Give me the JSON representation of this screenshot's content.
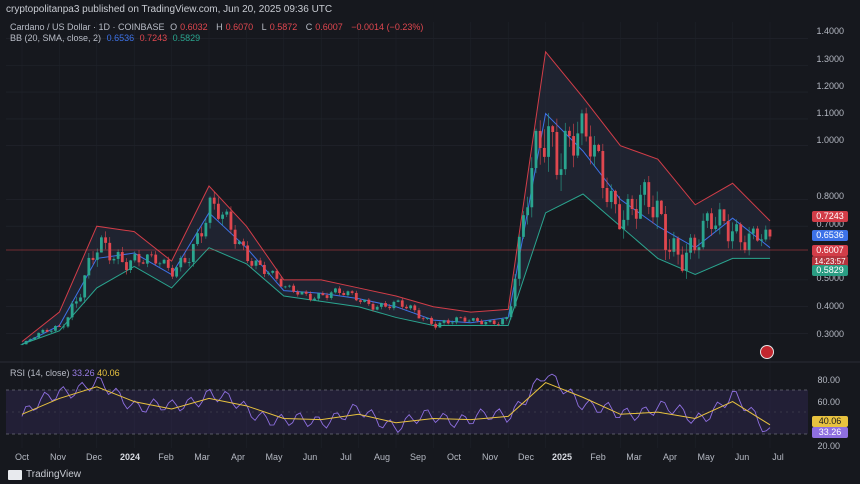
{
  "header": {
    "publisher_line": "cryptopolitanpa3 published on TradingView.com, Jun 20, 2025 09:36 UTC"
  },
  "legend": {
    "symbol": "Cardano / US Dollar · 1D · COINBASE",
    "open_label": "O",
    "open": "0.6032",
    "high_label": "H",
    "high": "0.6070",
    "low_label": "L",
    "low": "0.5872",
    "close_label": "C",
    "close": "0.6007",
    "change": "−0.0014 (−0.23%)",
    "bb_label": "BB (20, SMA, close, 2)",
    "bb_basis": "0.6536",
    "bb_upper": "0.7243",
    "bb_lower": "0.5829"
  },
  "rsi_legend": {
    "label": "RSI (14, close)",
    "rsi": "33.26",
    "rsi_ma": "40.06"
  },
  "price_axis": {
    "ticks": [
      "1.4000",
      "1.3000",
      "1.2000",
      "1.1000",
      "1.0000",
      "0.8000",
      "0.7000",
      "0.5000",
      "0.4000",
      "0.3000"
    ]
  },
  "rsi_axis": {
    "ticks": [
      "80.00",
      "60.00",
      "20.00"
    ]
  },
  "tags": {
    "bb_upper": "0.7243",
    "bb_basis": "0.6536",
    "price": "0.6007",
    "countdown": "14:23:57",
    "bb_lower": "0.5829",
    "rsi_ma": "40.06",
    "rsi": "33.26"
  },
  "time_axis": {
    "labels": [
      "Oct",
      "Nov",
      "Dec",
      "2024",
      "Feb",
      "Mar",
      "Apr",
      "May",
      "Jun",
      "Jul",
      "Aug",
      "Sep",
      "Oct",
      "Nov",
      "Dec",
      "2025",
      "Feb",
      "Mar",
      "Apr",
      "May",
      "Jun",
      "Jul"
    ],
    "bold": [
      "2024",
      "2025"
    ]
  },
  "footer": {
    "brand": "TradingView"
  },
  "colors": {
    "candle_up": "#2aa58f",
    "candle_down": "#e0474f",
    "bb_upper": "#d23d48",
    "bb_basis": "#3d72e8",
    "bb_lower": "#2aa58f",
    "rsi": "#8e6fe0",
    "rsi_ma": "#e8c23f"
  },
  "chart_data": {
    "type": "line",
    "title": "Cardano / US Dollar · 1D · COINBASE",
    "xlabel": "",
    "ylabel": "",
    "ylim": [
      0.22,
      1.45
    ],
    "x": [
      "Oct",
      "Nov",
      "Dec",
      "2024",
      "Feb",
      "Mar",
      "Apr",
      "May",
      "Jun",
      "Jul",
      "Aug",
      "Sep",
      "Oct",
      "Nov",
      "Dec",
      "2025",
      "Feb",
      "Mar",
      "Apr",
      "May",
      "Jun"
    ],
    "series": [
      {
        "name": "",
        "values": [
          0.26,
          0.33,
          0.58,
          0.6,
          0.52,
          0.75,
          0.62,
          0.46,
          0.45,
          0.43,
          0.4,
          0.35,
          0.34,
          0.36,
          1.12,
          0.98,
          0.8,
          0.7,
          0.62,
          0.73,
          0.62
        ]
      },
      {
        "name": "",
        "values": [
          0.27,
          0.38,
          0.7,
          0.68,
          0.57,
          0.85,
          0.7,
          0.5,
          0.5,
          0.47,
          0.44,
          0.4,
          0.38,
          0.39,
          1.35,
          1.18,
          1.0,
          0.95,
          0.78,
          0.86,
          0.72
        ]
      },
      {
        "name": "",
        "values": [
          0.26,
          0.31,
          0.47,
          0.55,
          0.47,
          0.62,
          0.56,
          0.44,
          0.42,
          0.4,
          0.36,
          0.33,
          0.33,
          0.33,
          0.75,
          0.82,
          0.7,
          0.58,
          0.52,
          0.58,
          0.58
        ]
      }
    ],
    "rsi": {
      "label": "RSI (14, close)",
      "ylim": [
        20,
        90
      ],
      "values": [
        48,
        72,
        78,
        60,
        55,
        70,
        55,
        42,
        45,
        52,
        40,
        48,
        45,
        50,
        86,
        62,
        48,
        58,
        45,
        66,
        35
      ],
      "ma": [
        50,
        65,
        76,
        62,
        55,
        65,
        58,
        46,
        45,
        50,
        42,
        46,
        45,
        48,
        80,
        66,
        50,
        52,
        46,
        62,
        40
      ]
    }
  }
}
